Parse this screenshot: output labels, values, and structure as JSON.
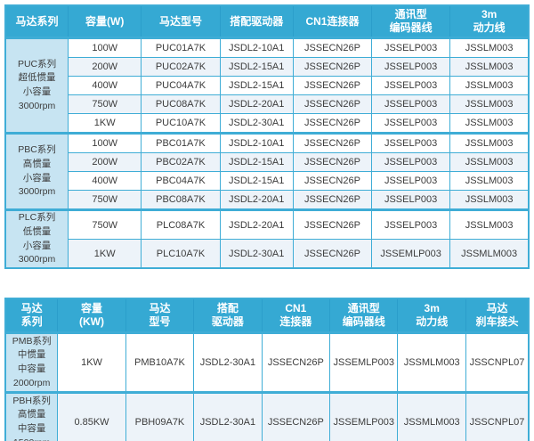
{
  "colors": {
    "header_bg": "#35a9d3",
    "header_text": "#ffffff",
    "header_divider": "#2b9ecb",
    "border": "#3fadd6",
    "series_bg": "#c7e4f2",
    "row_alt_bg": "#edf3f9",
    "text": "#3c3c3c"
  },
  "small_capacity_table": {
    "columns": [
      "马达系列",
      "容量(W)",
      "马达型号",
      "搭配驱动器",
      "CN1连接器",
      "通讯型\n编码器线",
      "3m\n动力线"
    ],
    "sections": [
      {
        "series": "PUC系列\n超低惯量\n小容量\n3000rpm",
        "rows": [
          [
            "100W",
            "PUC01A7K",
            "JSDL2-10A1",
            "JSSECN26P",
            "JSSELP003",
            "JSSLM003"
          ],
          [
            "200W",
            "PUC02A7K",
            "JSDL2-15A1",
            "JSSECN26P",
            "JSSELP003",
            "JSSLM003"
          ],
          [
            "400W",
            "PUC04A7K",
            "JSDL2-15A1",
            "JSSECN26P",
            "JSSELP003",
            "JSSLM003"
          ],
          [
            "750W",
            "PUC08A7K",
            "JSDL2-20A1",
            "JSSECN26P",
            "JSSELP003",
            "JSSLM003"
          ],
          [
            "1KW",
            "PUC10A7K",
            "JSDL2-30A1",
            "JSSECN26P",
            "JSSELP003",
            "JSSLM003"
          ]
        ]
      },
      {
        "series": "PBC系列\n高惯量\n小容量\n3000rpm",
        "rows": [
          [
            "100W",
            "PBC01A7K",
            "JSDL2-10A1",
            "JSSECN26P",
            "JSSELP003",
            "JSSLM003"
          ],
          [
            "200W",
            "PBC02A7K",
            "JSDL2-15A1",
            "JSSECN26P",
            "JSSELP003",
            "JSSLM003"
          ],
          [
            "400W",
            "PBC04A7K",
            "JSDL2-15A1",
            "JSSECN26P",
            "JSSELP003",
            "JSSLM003"
          ],
          [
            "750W",
            "PBC08A7K",
            "JSDL2-20A1",
            "JSSECN26P",
            "JSSELP003",
            "JSSLM003"
          ]
        ]
      },
      {
        "series": "PLC系列\n低惯量\n小容量\n3000rpm",
        "rows": [
          [
            "750W",
            "PLC08A7K",
            "JSDL2-20A1",
            "JSSECN26P",
            "JSSELP003",
            "JSSLM003"
          ],
          [
            "1KW",
            "PLC10A7K",
            "JSDL2-30A1",
            "JSSECN26P",
            "JSSEMLP003",
            "JSSMLM003"
          ]
        ]
      }
    ]
  },
  "medium_capacity_table": {
    "columns": [
      "马达\n系列",
      "容量\n(KW)",
      "马达\n型号",
      "搭配\n驱动器",
      "CN1\n连接器",
      "通讯型\n编码器线",
      "3m\n动力线",
      "马达\n刹车接头"
    ],
    "sections": [
      {
        "series": "PMB系列\n中惯量\n中容量\n2000rpm",
        "rows": [
          [
            "1KW",
            "PMB10A7K",
            "JSDL2-30A1",
            "JSSECN26P",
            "JSSEMLP003",
            "JSSMLM003",
            "JSSCNPL07"
          ]
        ]
      },
      {
        "series": "PBH系列\n高惯量\n中容量\n1500rpm",
        "rows": [
          [
            "0.85KW",
            "PBH09A7K",
            "JSDL2-30A1",
            "JSSECN26P",
            "JSSEMLP003",
            "JSSMLM003",
            "JSSCNPL07"
          ]
        ]
      }
    ]
  }
}
